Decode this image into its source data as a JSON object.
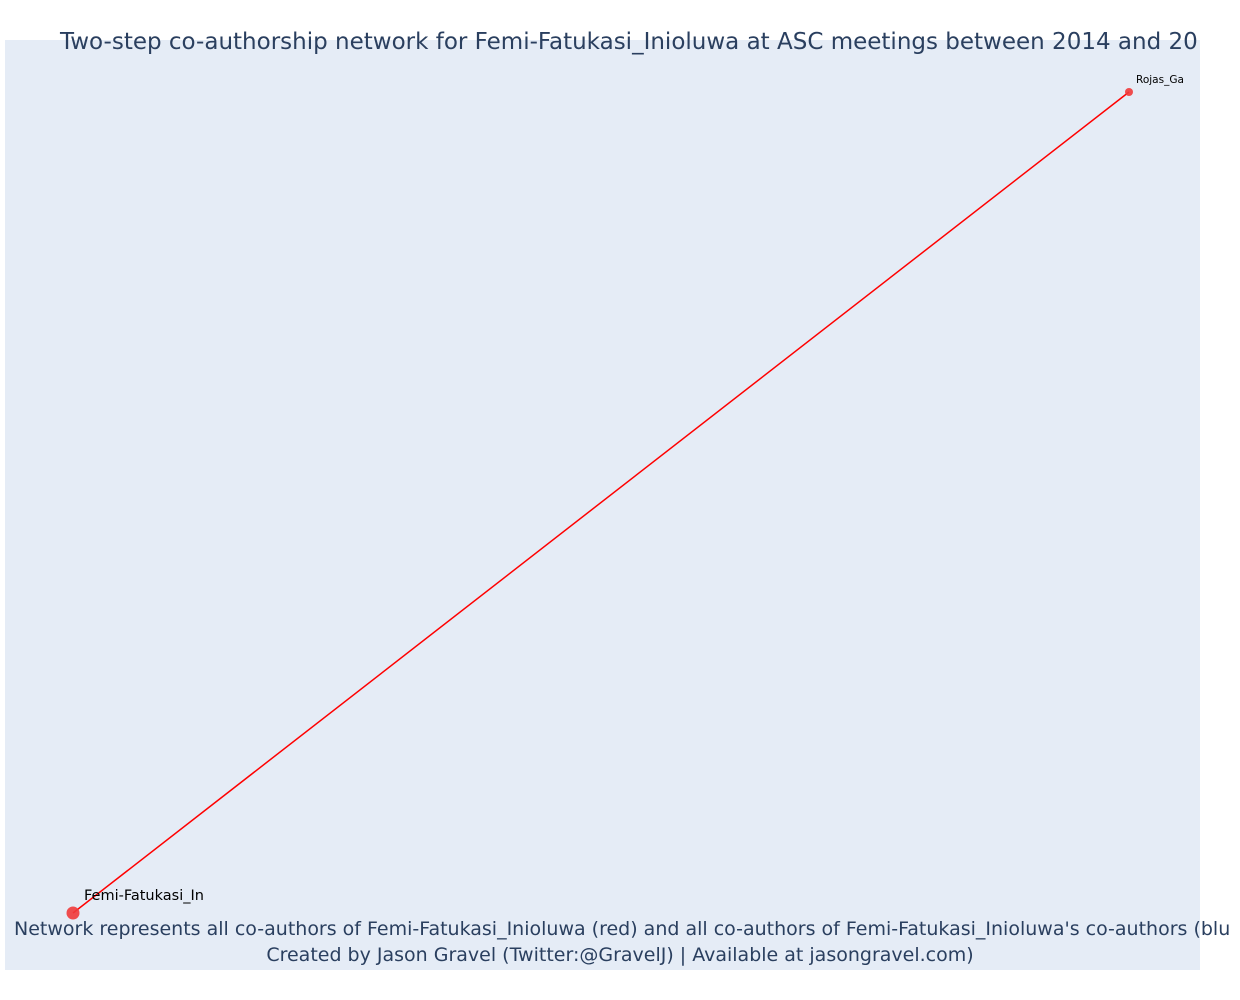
{
  "title": "Two-step co-authorship network for Femi-Fatukasi_Inioluwa at ASC meetings between 2014 and 20",
  "caption_line1": "Network represents all co-authors of Femi-Fatukasi_Inioluwa (red) and all co-authors of Femi-Fatukasi_Inioluwa's co-authors (blu",
  "caption_line2": "Created by Jason Gravel (Twitter:@GravelJ) | Available at jasongravel.com)",
  "colors": {
    "background": "#e5ecf6",
    "edge": "#ff0000",
    "node": "#ef3b3b",
    "text": "#2a3f5f"
  },
  "nodes": [
    {
      "id": "femi",
      "label": "Femi-Fatukasi_In",
      "role": "focal",
      "color": "red"
    },
    {
      "id": "rojas",
      "label": "Rojas_Ga",
      "role": "co-author",
      "color": "red"
    }
  ],
  "edges": [
    {
      "source": "femi",
      "target": "rojas",
      "color": "red"
    }
  ]
}
